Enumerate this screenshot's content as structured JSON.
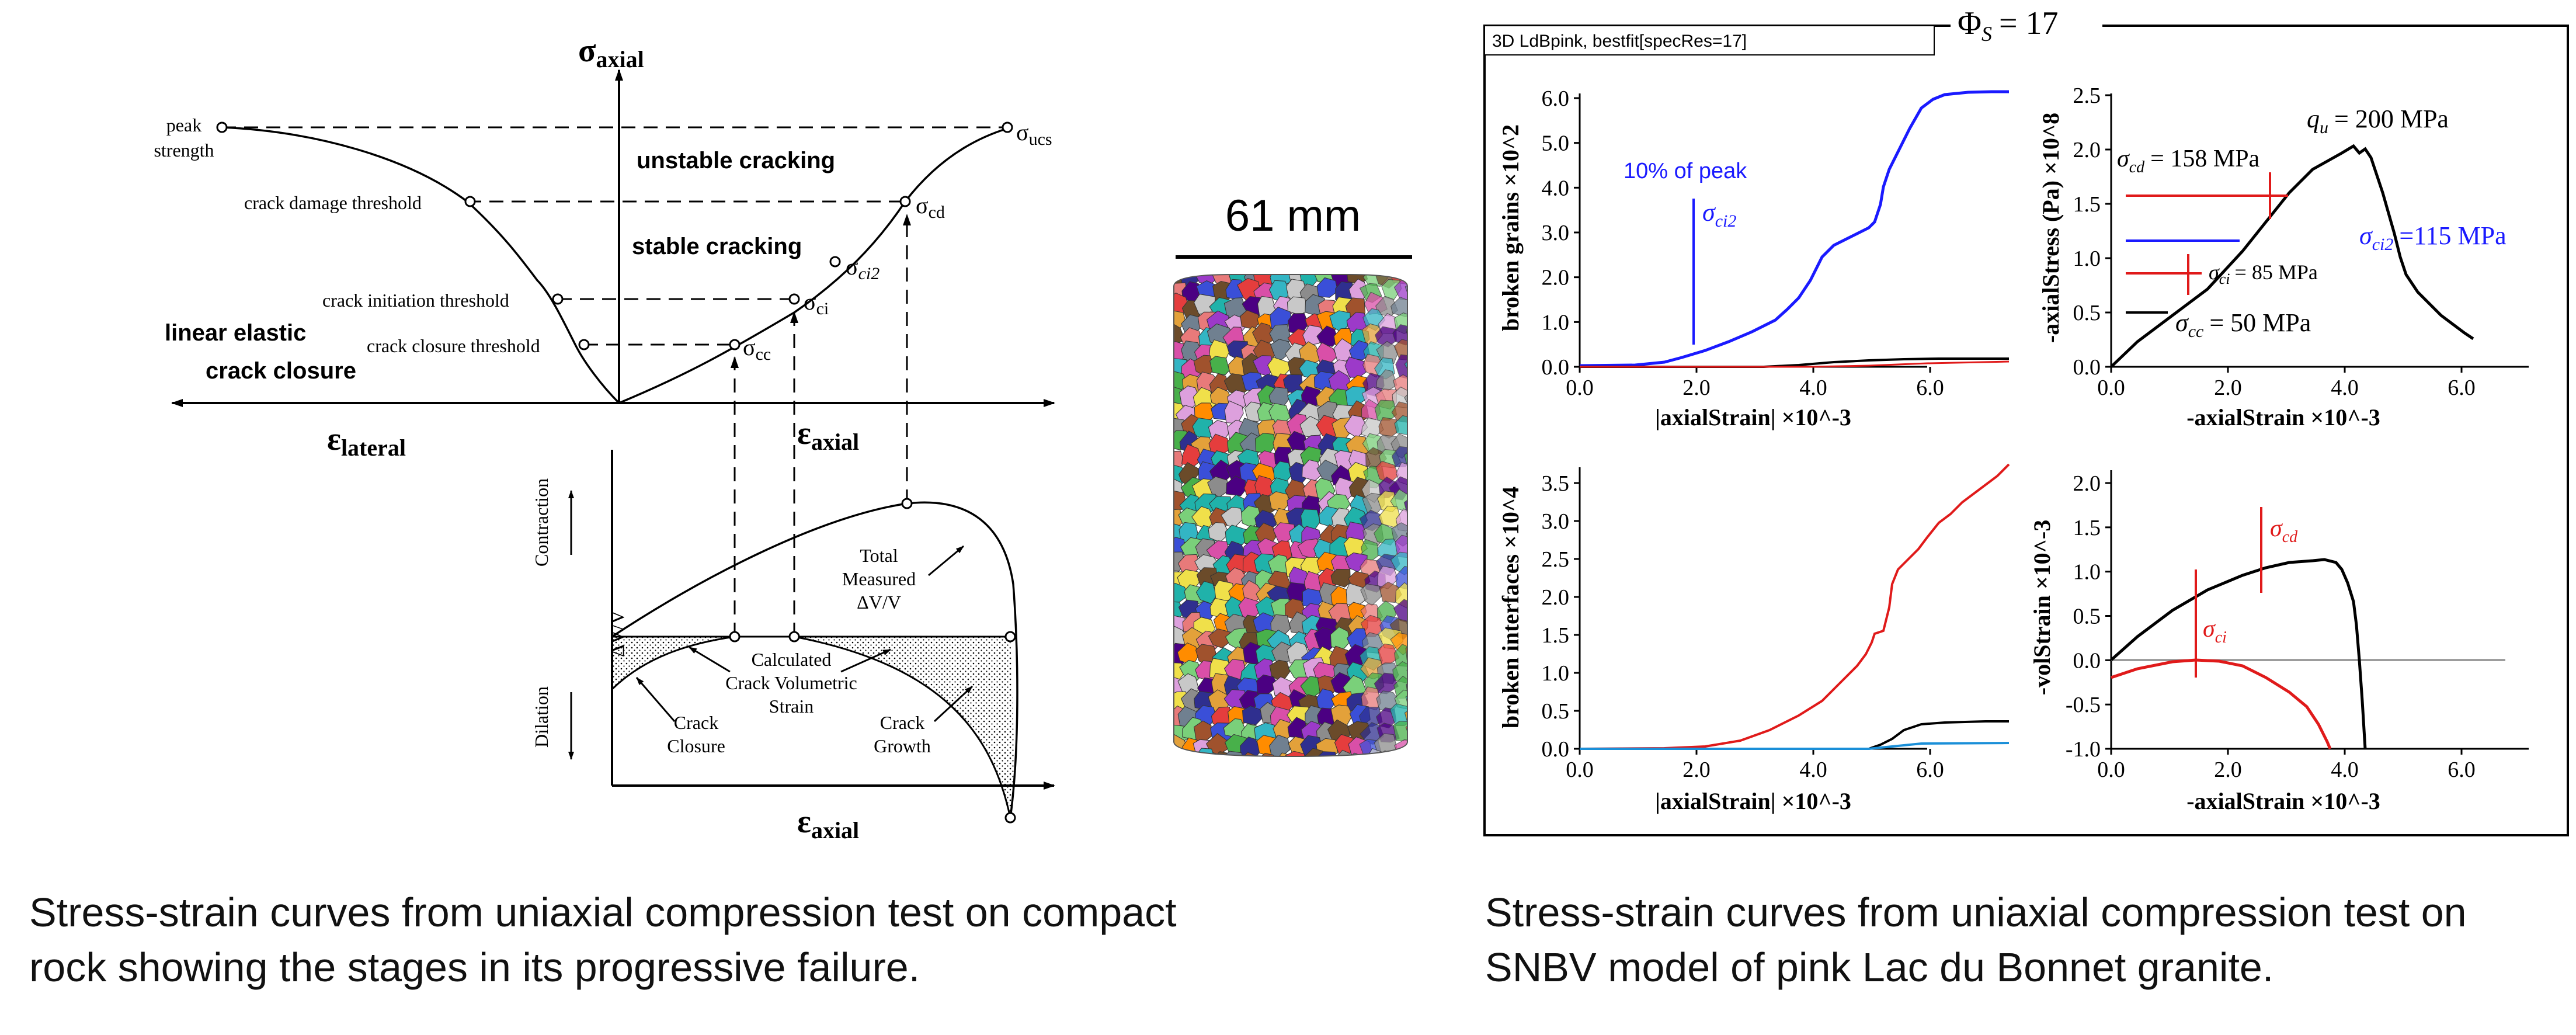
{
  "left_diagram": {
    "sigma_axial": "σ",
    "sigma_axial_sub": "axial",
    "eps_lateral": "ε",
    "eps_lateral_sub": "lateral",
    "eps_axial": "ε",
    "eps_axial_sub": "axial",
    "eps_axial_bottom": "ε",
    "eps_axial_bottom_sub": "axial",
    "peak_strength": [
      "peak",
      "strength"
    ],
    "crack_damage_threshold": "crack damage threshold",
    "crack_initiation_threshold": "crack initiation threshold",
    "crack_closure_threshold": "crack closure threshold",
    "linear_elastic": "linear elastic",
    "crack_closure_region": "crack closure",
    "unstable_cracking": "unstable cracking",
    "stable_cracking": "stable cracking",
    "sigma_ucs": "σ",
    "sigma_ucs_sub": "ucs",
    "sigma_cd": "σ",
    "sigma_cd_sub": "cd",
    "sigma_ci2": "σ",
    "sigma_ci2_sub": "ci2",
    "sigma_ci": "σ",
    "sigma_ci_sub": "ci",
    "sigma_cc": "σ",
    "sigma_cc_sub": "cc",
    "contraction": "Contraction",
    "dilation": "Dilation",
    "dv_v": "ΔV/V",
    "total_measured": [
      "Total",
      "Measured",
      "ΔV/V"
    ],
    "calculated": [
      "Calculated",
      "Crack Volumetric",
      "Strain"
    ],
    "crack_closure_label": [
      "Crack",
      "Closure"
    ],
    "crack_growth_label": [
      "Crack",
      "Growth"
    ]
  },
  "specimen": {
    "size_label": "61 mm",
    "colors": [
      "#e53d3d",
      "#3a4fd8",
      "#33b5c4",
      "#e3a13a",
      "#9c3ac9",
      "#48b04a",
      "#d94fa8",
      "#8c8c8c",
      "#c8c8c8",
      "#6b4b2a",
      "#f0e04a",
      "#2f2f8f",
      "#e87a7a",
      "#7ad07a",
      "#a0522d",
      "#ff8c00",
      "#4b0082",
      "#20b2aa",
      "#dda0dd",
      "#708090"
    ]
  },
  "model_panel": {
    "header": "3D LdBpink, bestfit[specRes=17]",
    "phi": "Φ",
    "phi_sub": "S",
    "phi_eq": "= 17",
    "tl": {
      "ylabel": "broken grains ×10^2",
      "xlabel": "|axialStrain| ×10^-3",
      "yticks": [
        "0.0",
        "1.0",
        "2.0",
        "3.0",
        "4.0",
        "5.0",
        "6.0"
      ],
      "xticks": [
        "0.0",
        "2.0",
        "4.0",
        "6.0"
      ],
      "note": "10% of peak",
      "sigma": "σ",
      "sigma_sub": "ci2"
    },
    "tr": {
      "ylabel": "-axialStress (Pa) ×10^8",
      "xlabel": "-axialStrain ×10^-3",
      "yticks": [
        "0.0",
        "0.5",
        "1.0",
        "1.5",
        "2.0",
        "2.5"
      ],
      "xticks": [
        "0.0",
        "2.0",
        "4.0",
        "6.0"
      ],
      "qu": "q",
      "qu_sub": "u",
      "qu_val": "= 200 MPa",
      "scd": "σ",
      "scd_sub": "cd",
      "scd_val": "= 158 MPa",
      "sci": "σ",
      "sci_sub": "ci",
      "sci_val": "= 85 MPa",
      "scc": "σ",
      "scc_sub": "cc",
      "scc_val": "= 50 MPa",
      "sci2": "σ",
      "sci2_sub": "ci2",
      "sci2_val": "=115 MPa"
    },
    "bl": {
      "ylabel": "broken interfaces ×10^4",
      "xlabel": "|axialStrain| ×10^-3",
      "yticks": [
        "0.0",
        "0.5",
        "1.0",
        "1.5",
        "2.0",
        "2.5",
        "3.0",
        "3.5"
      ],
      "xticks": [
        "0.0",
        "2.0",
        "4.0",
        "6.0"
      ]
    },
    "br": {
      "ylabel": "-volStrain ×10^-3",
      "xlabel": "-axialStrain ×10^-3",
      "yticks": [
        "-1.0",
        "-0.5",
        "0.0",
        "0.5",
        "1.0",
        "1.5",
        "2.0"
      ],
      "xticks": [
        "0.0",
        "2.0",
        "4.0",
        "6.0"
      ],
      "scd": "σ",
      "scd_sub": "cd",
      "sci": "σ",
      "sci_sub": "ci"
    }
  },
  "captions": {
    "left": "Stress-strain curves from uniaxial compression test on compact rock showing the stages in its progressive failure.",
    "right": "Stress-strain curves from uniaxial compression test on SNBV model of pink Lac du Bonnet granite."
  }
}
